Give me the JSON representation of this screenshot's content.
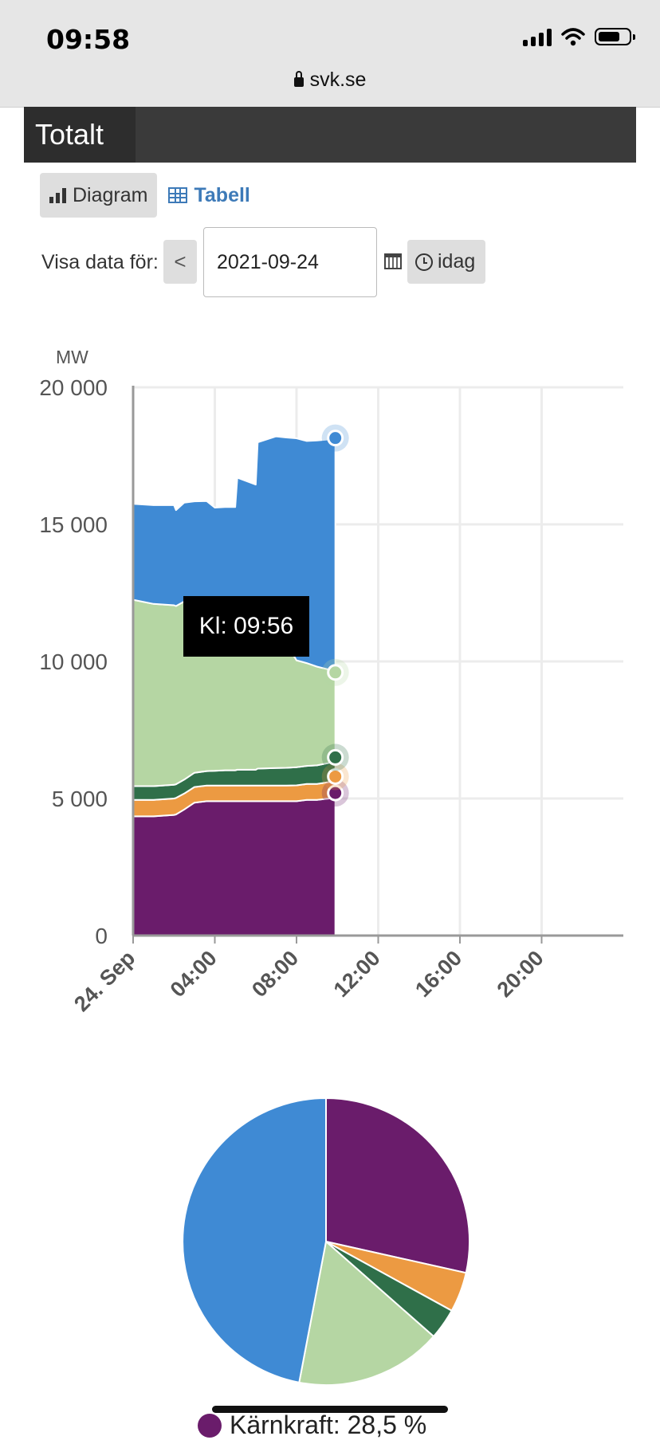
{
  "status_bar": {
    "time": "09:58"
  },
  "browser": {
    "url": "svk.se"
  },
  "panel": {
    "title": "Totalt"
  },
  "view_toggle": {
    "diagram_label": "Diagram",
    "table_label": "Tabell"
  },
  "date_controls": {
    "label": "Visa data för:",
    "prev_symbol": "<",
    "date_value": "2021-09-24",
    "today_label": "idag"
  },
  "tooltip": {
    "text": "Kl: 09:56"
  },
  "chart_data": [
    {
      "type": "area",
      "stacked": true,
      "ylabel": "MW",
      "ylim": [
        0,
        20000
      ],
      "yticks": [
        0,
        5000,
        10000,
        15000,
        20000
      ],
      "ytick_labels": [
        "0",
        "5 000",
        "10 000",
        "15 000",
        "20 000"
      ],
      "xlim_hours": [
        0,
        24
      ],
      "xticks_hours": [
        0,
        4,
        8,
        12,
        16,
        20
      ],
      "xtick_labels": [
        "24. Sep",
        "04:00",
        "08:00",
        "12:00",
        "16:00",
        "20:00"
      ],
      "grid": true,
      "x_hours": [
        0,
        1,
        2,
        2.1,
        2.5,
        3,
        3.6,
        4,
        4.5,
        5,
        5.1,
        6,
        6.1,
        7,
        7.5,
        8,
        8.5,
        9,
        9.6,
        9.9
      ],
      "series": [
        {
          "color": "#6a1c6b",
          "values": [
            4350,
            4350,
            4400,
            4420,
            4600,
            4850,
            4900,
            4900,
            4900,
            4900,
            4900,
            4900,
            4900,
            4900,
            4900,
            4900,
            4950,
            4950,
            5000,
            5200
          ]
        },
        {
          "color": "#ec9a42",
          "values": [
            600,
            600,
            600,
            600,
            580,
            570,
            570,
            570,
            570,
            570,
            570,
            570,
            570,
            570,
            570,
            580,
            580,
            580,
            600,
            600
          ]
        },
        {
          "color": "#2f6f49",
          "values": [
            500,
            500,
            500,
            500,
            510,
            520,
            530,
            540,
            560,
            560,
            580,
            580,
            620,
            640,
            650,
            660,
            660,
            680,
            700,
            700
          ]
        },
        {
          "color": "#b5d6a3",
          "values": [
            6800,
            6650,
            6550,
            6500,
            6500,
            6300,
            6200,
            6100,
            6000,
            5900,
            5800,
            5400,
            5100,
            4900,
            4550,
            3900,
            3750,
            3600,
            3400,
            3100
          ]
        },
        {
          "color": "#3f8ad4",
          "values": [
            3500,
            3600,
            3650,
            3500,
            3600,
            3600,
            3650,
            3500,
            3600,
            3700,
            4850,
            5000,
            6800,
            7200,
            7500,
            8100,
            8100,
            8250,
            8400,
            8550
          ]
        }
      ]
    },
    {
      "type": "pie",
      "slices": [
        {
          "label": "Kärnkraft",
          "value": 28.5,
          "color": "#6a1c6b"
        },
        {
          "value": 4.5,
          "color": "#ec9a42"
        },
        {
          "value": 3.5,
          "color": "#2f6f49"
        },
        {
          "value": 16.5,
          "color": "#b5d6a3"
        },
        {
          "value": 47.0,
          "color": "#3f8ad4"
        }
      ]
    }
  ],
  "legend_peek": {
    "text": "Kärnkraft: 28,5 %",
    "color": "#6a1c6b"
  }
}
